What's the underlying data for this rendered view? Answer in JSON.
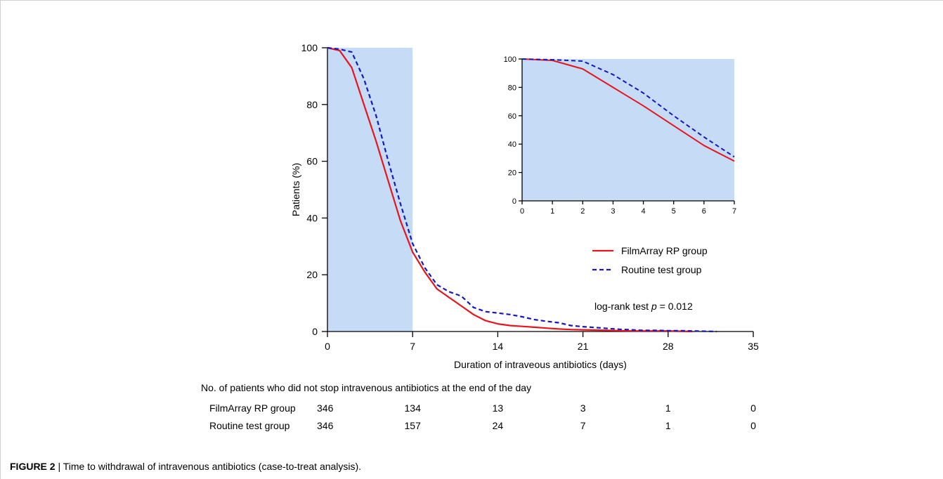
{
  "caption": {
    "label": "FIGURE 2",
    "separator": "|",
    "text": "Time to withdrawal of intravenous antibiotics (case-to-treat analysis)."
  },
  "colors": {
    "shade": "#c5dbf6",
    "filmarray": "#e8141c",
    "routine": "#1418c0"
  },
  "chart_data": [
    {
      "type": "line",
      "role": "main",
      "xlabel": "Duration of intraveous antibiotics (days)",
      "ylabel": "Patients (%)",
      "xlim": [
        0,
        35
      ],
      "ylim": [
        0,
        100
      ],
      "xticks": [
        0,
        7,
        14,
        21,
        28,
        35
      ],
      "yticks": [
        0,
        20,
        40,
        60,
        80,
        100
      ],
      "shaded_region_x": [
        0,
        7
      ],
      "legend_position": "right",
      "annotation": {
        "prefix": "log-rank test ",
        "italic": "p",
        "suffix": " = 0.012"
      },
      "series": [
        {
          "name": "FilmArray RP group",
          "style": "solid",
          "x": [
            0,
            1,
            2,
            3,
            4,
            5,
            6,
            7,
            8,
            9,
            10,
            11,
            12,
            13,
            14,
            15,
            16,
            17,
            18,
            19,
            20,
            21,
            22,
            23,
            24,
            25,
            26,
            27,
            28,
            29,
            30
          ],
          "y": [
            100,
            99,
            93,
            80,
            67,
            53,
            39,
            28,
            21,
            15,
            12,
            9,
            6,
            3.8,
            2.7,
            2.1,
            1.8,
            1.5,
            1.2,
            0.9,
            0.7,
            0.6,
            0.5,
            0.4,
            0.3,
            0.2,
            0.2,
            0.2,
            0.2,
            0.1,
            0
          ]
        },
        {
          "name": "Routine test group",
          "style": "dashed",
          "x": [
            0,
            1,
            2,
            3,
            4,
            5,
            6,
            7,
            8,
            9,
            10,
            11,
            12,
            13,
            14,
            15,
            16,
            17,
            18,
            19,
            20,
            21,
            22,
            23,
            24,
            25,
            26,
            27,
            28,
            29,
            30,
            31,
            32
          ],
          "y": [
            100,
            99.5,
            98.5,
            89,
            76,
            60,
            45,
            31,
            22.5,
            16.5,
            14,
            12.5,
            8.5,
            7,
            6.5,
            6,
            5.2,
            4.2,
            3.6,
            3.1,
            2.1,
            1.7,
            1.4,
            1.1,
            0.8,
            0.6,
            0.4,
            0.4,
            0.3,
            0.3,
            0.2,
            0.1,
            0
          ]
        }
      ]
    },
    {
      "type": "line",
      "role": "inset",
      "xlim": [
        0,
        7
      ],
      "ylim": [
        0,
        100
      ],
      "xticks": [
        0,
        1,
        2,
        3,
        4,
        5,
        6,
        7
      ],
      "yticks": [
        0,
        20,
        40,
        60,
        80,
        100
      ],
      "series": [
        {
          "name": "FilmArray RP group",
          "style": "solid",
          "x": [
            0,
            1,
            2,
            3,
            4,
            5,
            6,
            7
          ],
          "y": [
            100,
            99,
            93,
            80,
            67,
            53,
            39,
            28
          ]
        },
        {
          "name": "Routine test group",
          "style": "dashed",
          "x": [
            0,
            1,
            2,
            3,
            4,
            5,
            6,
            7
          ],
          "y": [
            100,
            99.5,
            98.5,
            89,
            76,
            60,
            45,
            31
          ]
        }
      ]
    },
    {
      "type": "table",
      "role": "number-at-risk",
      "title": "No. of patients who did not stop intravenous antibiotics at the end of the day",
      "columns": [
        0,
        7,
        14,
        21,
        28,
        35
      ],
      "rows": [
        {
          "label": "FilmArray RP group",
          "values": [
            "346",
            "134",
            "13",
            "3",
            "1",
            "0"
          ]
        },
        {
          "label": "Routine test group",
          "values": [
            "346",
            "157",
            "24",
            "7",
            "1",
            "0"
          ]
        }
      ]
    }
  ]
}
